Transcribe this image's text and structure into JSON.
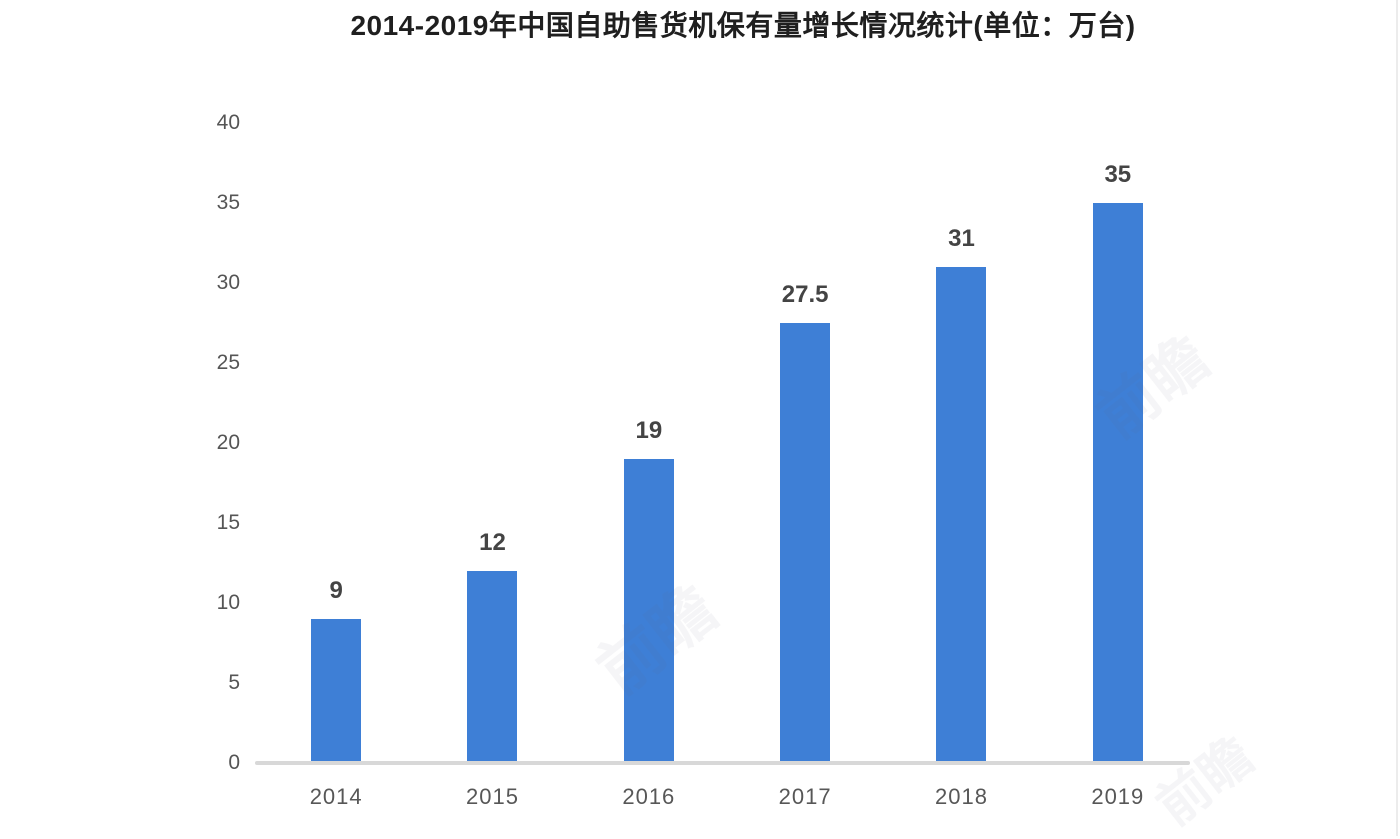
{
  "chart_data": {
    "type": "bar",
    "title": "2014-2019年中国自助售货机保有量增长情况统计(单位：万台)",
    "categories": [
      "2014",
      "2015",
      "2016",
      "2017",
      "2018",
      "2019"
    ],
    "values": [
      9,
      12,
      19,
      27.5,
      31,
      35
    ],
    "value_labels": [
      "9",
      "12",
      "19",
      "27.5",
      "31",
      "35"
    ],
    "y_ticks": [
      0,
      5,
      10,
      15,
      20,
      25,
      30,
      35,
      40
    ],
    "ylim": [
      0,
      40
    ],
    "xlabel": "",
    "ylabel": "",
    "grid": false,
    "legend": null,
    "bar_color": "#3E7FD6",
    "axis_line_color": "#D8D8D8",
    "tick_label_color": "#555555",
    "x_label_color": "#575757",
    "value_label_color": "#444444",
    "title_color": "#1F1F1F",
    "background_color": "#FFFFFF"
  },
  "watermark": {
    "text": "前瞻"
  }
}
